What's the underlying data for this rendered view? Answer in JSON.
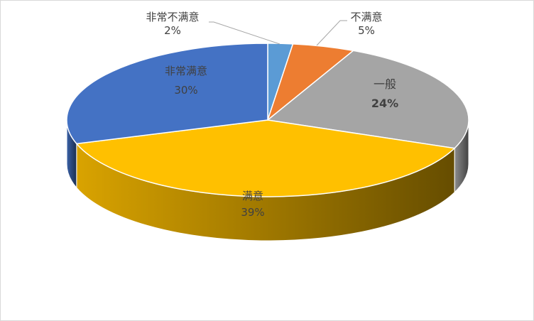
{
  "chart_data": {
    "type": "pie",
    "style": "3d",
    "title": "",
    "start": "top",
    "direction": "clockwise",
    "slices": [
      {
        "label": "非常不满意",
        "value": 2,
        "value_label": "2%",
        "color": "#5B9BD5"
      },
      {
        "label": "不满意",
        "value": 5,
        "value_label": "5%",
        "color": "#ED7D31"
      },
      {
        "label": "一般",
        "value": 24,
        "value_label": "24%",
        "color": "#A5A5A5"
      },
      {
        "label": "满意",
        "value": 39,
        "value_label": "39%",
        "color": "#FFC000"
      },
      {
        "label": "非常满意",
        "value": 30,
        "value_label": "30%",
        "color": "#4472C4"
      }
    ],
    "legend": "none"
  }
}
